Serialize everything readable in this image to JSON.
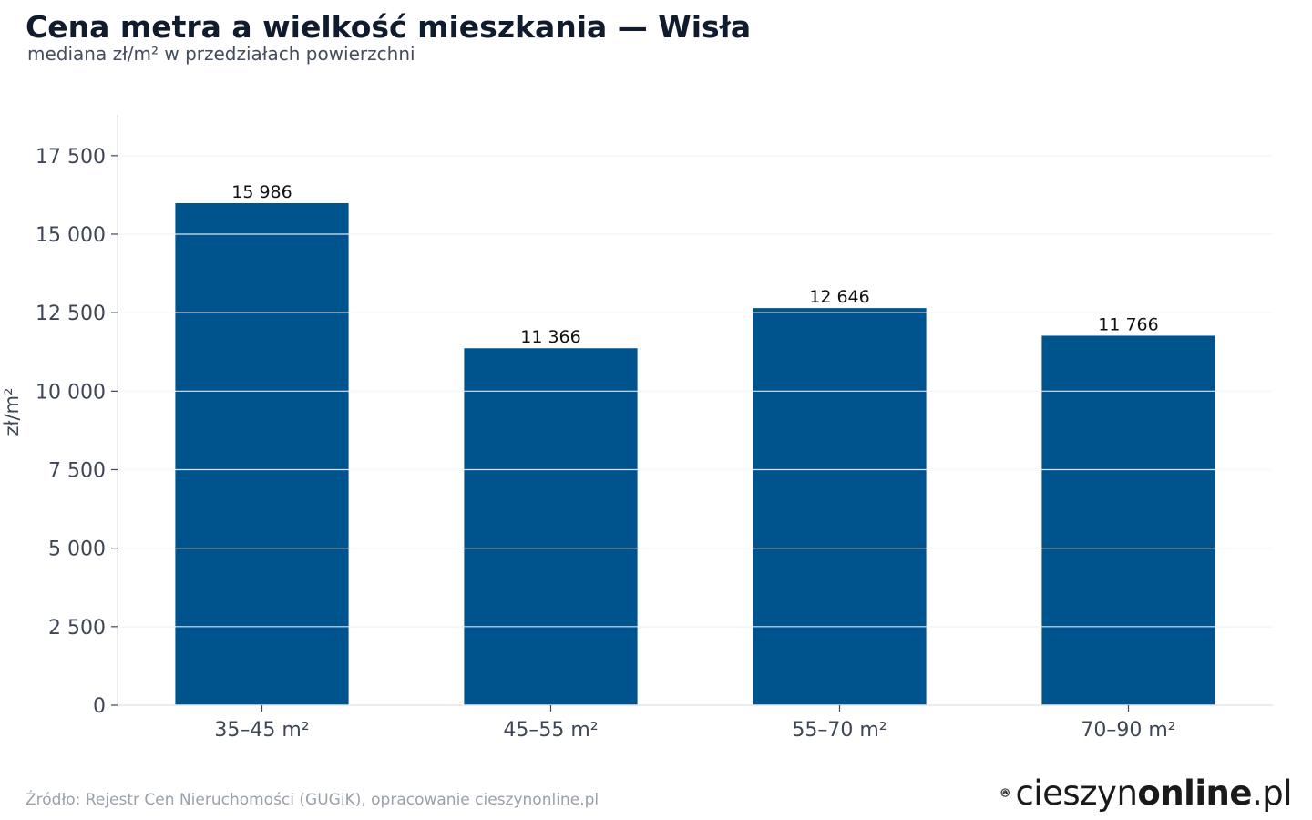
{
  "header": {
    "title": "Cena metra a wielkość mieszkania — Wisła",
    "subtitle": "mediana zł/m² w przedziałach powierzchni"
  },
  "footer": {
    "source": "Źródło: Rejestr Cen Nieruchomości (GUGiK), opracowanie cieszynonline.pl",
    "logo_regular": "cieszyn",
    "logo_bold": "online",
    "logo_suffix": ".pl"
  },
  "colors": {
    "bar": "#00548e",
    "grid": "#e4e6ea",
    "axis_text": "#3f4756",
    "label_text": "#111111"
  },
  "chart_data": {
    "type": "bar",
    "categories": [
      "35–45 m²",
      "45–55 m²",
      "55–70 m²",
      "70–90 m²"
    ],
    "values": [
      15986,
      11366,
      12646,
      11766
    ],
    "value_labels": [
      "15 986",
      "11 366",
      "12 646",
      "11 766"
    ],
    "ylabel": "zł/m²",
    "ylim": [
      0,
      18800
    ],
    "yticks": [
      0,
      2500,
      5000,
      7500,
      10000,
      12500,
      15000,
      17500
    ],
    "ytick_labels": [
      "0",
      "2 500",
      "5 000",
      "7 500",
      "10 000",
      "12 500",
      "15 000",
      "17 500"
    ],
    "grid": true
  }
}
